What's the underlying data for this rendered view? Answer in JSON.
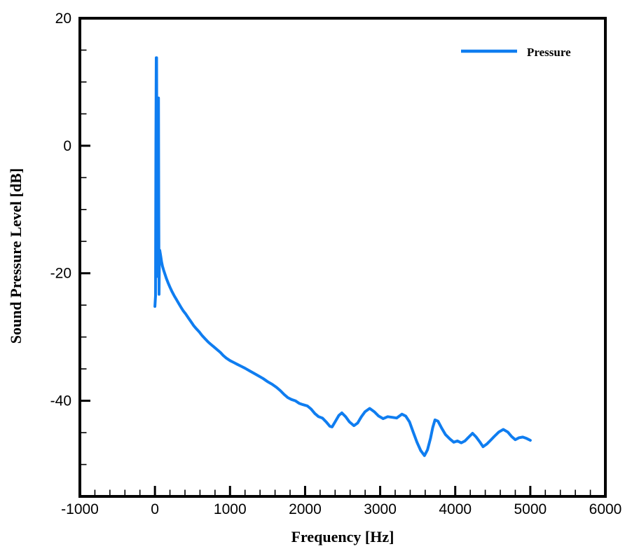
{
  "figure": {
    "background_color": "#ffffff",
    "frame_color": "#000000"
  },
  "legend": {
    "label": "Pressure",
    "line_color": "#0f7df0",
    "position": "top-right"
  },
  "axes": {
    "x_title": "Frequency [Hz]",
    "y_title": "Sound Pressure Level [dB]",
    "x_tick_labels": [
      "-1000",
      "0",
      "1000",
      "2000",
      "3000",
      "4000",
      "5000",
      "6000"
    ],
    "y_tick_labels": [
      "20",
      "0",
      "-20",
      "-40"
    ]
  },
  "chart_data": {
    "type": "line",
    "title": "",
    "xlabel": "Frequency [Hz]",
    "ylabel": "Sound Pressure Level [dB]",
    "xlim": [
      -1000,
      6000
    ],
    "ylim": [
      -55,
      20
    ],
    "x_major_ticks": [
      -1000,
      0,
      1000,
      2000,
      3000,
      4000,
      5000,
      6000
    ],
    "x_minor_step": 200,
    "y_major_ticks": [
      20,
      0,
      -20,
      -40
    ],
    "y_minor_step": 5,
    "grid": false,
    "legend_position": "top-right",
    "series": [
      {
        "name": "Pressure",
        "color": "#0f7df0",
        "line_width": 4,
        "points": [
          [
            0,
            -25.2
          ],
          [
            8,
            -23.5
          ],
          [
            13,
            0
          ],
          [
            17,
            13.8
          ],
          [
            22,
            13.8
          ],
          [
            26,
            -3
          ],
          [
            30,
            -20.5
          ],
          [
            34,
            -9
          ],
          [
            40,
            7.5
          ],
          [
            47,
            7.5
          ],
          [
            51,
            -11
          ],
          [
            55,
            -23.3
          ],
          [
            59,
            -17.6
          ],
          [
            64,
            -16.4
          ],
          [
            70,
            -16.8
          ],
          [
            78,
            -17.4
          ],
          [
            88,
            -18.2
          ],
          [
            100,
            -18.9
          ],
          [
            115,
            -19.5
          ],
          [
            132,
            -20.1
          ],
          [
            152,
            -20.8
          ],
          [
            175,
            -21.5
          ],
          [
            200,
            -22.2
          ],
          [
            228,
            -22.9
          ],
          [
            255,
            -23.5
          ],
          [
            285,
            -24.1
          ],
          [
            315,
            -24.7
          ],
          [
            345,
            -25.3
          ],
          [
            378,
            -25.9
          ],
          [
            410,
            -26.4
          ],
          [
            445,
            -27.0
          ],
          [
            480,
            -27.6
          ],
          [
            515,
            -28.2
          ],
          [
            550,
            -28.7
          ],
          [
            590,
            -29.2
          ],
          [
            630,
            -29.8
          ],
          [
            670,
            -30.3
          ],
          [
            710,
            -30.8
          ],
          [
            750,
            -31.2
          ],
          [
            790,
            -31.6
          ],
          [
            830,
            -32.0
          ],
          [
            870,
            -32.4
          ],
          [
            910,
            -32.9
          ],
          [
            950,
            -33.3
          ],
          [
            1000,
            -33.7
          ],
          [
            1050,
            -34.0
          ],
          [
            1100,
            -34.3
          ],
          [
            1150,
            -34.6
          ],
          [
            1200,
            -34.9
          ],
          [
            1260,
            -35.3
          ],
          [
            1320,
            -35.7
          ],
          [
            1380,
            -36.1
          ],
          [
            1440,
            -36.5
          ],
          [
            1500,
            -37.0
          ],
          [
            1560,
            -37.4
          ],
          [
            1620,
            -37.9
          ],
          [
            1670,
            -38.4
          ],
          [
            1720,
            -39.0
          ],
          [
            1770,
            -39.5
          ],
          [
            1820,
            -39.8
          ],
          [
            1870,
            -40.0
          ],
          [
            1920,
            -40.4
          ],
          [
            1970,
            -40.6
          ],
          [
            2030,
            -40.8
          ],
          [
            2080,
            -41.3
          ],
          [
            2130,
            -42.0
          ],
          [
            2180,
            -42.5
          ],
          [
            2230,
            -42.7
          ],
          [
            2280,
            -43.3
          ],
          [
            2330,
            -44.0
          ],
          [
            2360,
            -44.1
          ],
          [
            2400,
            -43.3
          ],
          [
            2450,
            -42.3
          ],
          [
            2490,
            -41.9
          ],
          [
            2540,
            -42.5
          ],
          [
            2590,
            -43.3
          ],
          [
            2650,
            -43.9
          ],
          [
            2700,
            -43.5
          ],
          [
            2750,
            -42.5
          ],
          [
            2800,
            -41.7
          ],
          [
            2860,
            -41.2
          ],
          [
            2920,
            -41.7
          ],
          [
            2980,
            -42.4
          ],
          [
            3040,
            -42.8
          ],
          [
            3100,
            -42.5
          ],
          [
            3160,
            -42.6
          ],
          [
            3220,
            -42.7
          ],
          [
            3290,
            -42.1
          ],
          [
            3340,
            -42.4
          ],
          [
            3390,
            -43.3
          ],
          [
            3440,
            -44.9
          ],
          [
            3490,
            -46.5
          ],
          [
            3540,
            -47.8
          ],
          [
            3590,
            -48.6
          ],
          [
            3630,
            -47.7
          ],
          [
            3670,
            -45.9
          ],
          [
            3700,
            -44.2
          ],
          [
            3730,
            -43.0
          ],
          [
            3770,
            -43.2
          ],
          [
            3820,
            -44.3
          ],
          [
            3870,
            -45.3
          ],
          [
            3930,
            -46.0
          ],
          [
            3980,
            -46.5
          ],
          [
            4030,
            -46.3
          ],
          [
            4080,
            -46.6
          ],
          [
            4130,
            -46.3
          ],
          [
            4180,
            -45.7
          ],
          [
            4230,
            -45.1
          ],
          [
            4280,
            -45.7
          ],
          [
            4330,
            -46.5
          ],
          [
            4370,
            -47.2
          ],
          [
            4420,
            -46.8
          ],
          [
            4470,
            -46.2
          ],
          [
            4520,
            -45.6
          ],
          [
            4580,
            -44.9
          ],
          [
            4640,
            -44.5
          ],
          [
            4700,
            -44.9
          ],
          [
            4750,
            -45.6
          ],
          [
            4800,
            -46.1
          ],
          [
            4850,
            -45.8
          ],
          [
            4900,
            -45.7
          ],
          [
            4950,
            -45.9
          ],
          [
            5000,
            -46.2
          ]
        ]
      }
    ]
  }
}
